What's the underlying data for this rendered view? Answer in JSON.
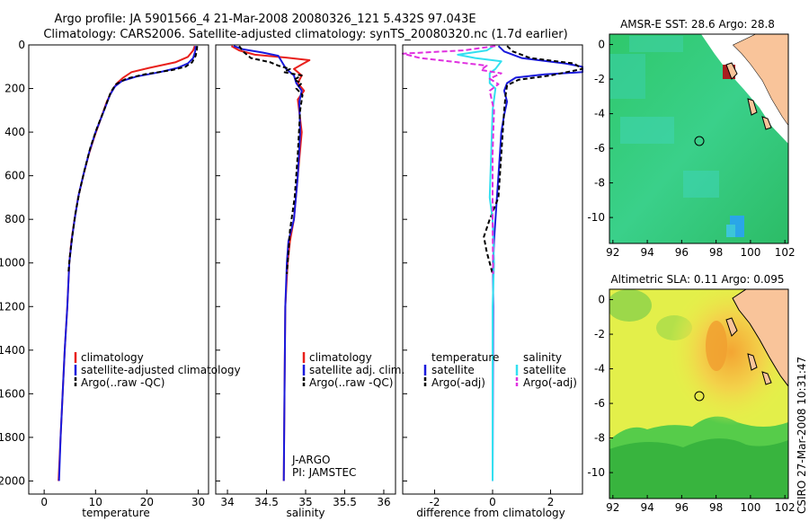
{
  "title": {
    "line1": "Argo profile: JA 5901566_4 21-Mar-2008 20080326_121 5.432S 97.043E",
    "line2": "Climatology: CARS2006. Satellite-adjusted climatology: synTS_20080320.nc (1.7d earlier)"
  },
  "side_label": "CSIRO 27-Mar-2008 10:31:47",
  "colors": {
    "climatology": "#e8201c",
    "satellite": "#1a1adc",
    "argo": "#000000",
    "cyan": "#33e0f0",
    "magenta": "#e030e0",
    "land": "#f9c49a"
  },
  "chart_data": [
    {
      "type": "line",
      "name": "temperature-panel",
      "xlabel": "temperature",
      "ylabel": "",
      "xlim": [
        -3,
        32
      ],
      "ylim": [
        2060,
        0
      ],
      "xticks": [
        0,
        10,
        20,
        30
      ],
      "yticks": [
        0,
        200,
        400,
        600,
        800,
        1000,
        1200,
        1400,
        1600,
        1800,
        2000
      ],
      "legend": [
        "climatology",
        "satellite-adjusted climatology",
        "Argo(..raw -QC)"
      ],
      "series": [
        {
          "name": "climatology",
          "color": "climatology",
          "dash": "",
          "points": [
            [
              29.3,
              5
            ],
            [
              29.0,
              25
            ],
            [
              28.0,
              55
            ],
            [
              25.5,
              80
            ],
            [
              20.5,
              105
            ],
            [
              17.0,
              125
            ],
            [
              15.4,
              150
            ],
            [
              14.2,
              175
            ],
            [
              13.2,
              210
            ],
            [
              12.2,
              260
            ],
            [
              11.0,
              340
            ],
            [
              9.8,
              420
            ],
            [
              8.7,
              500
            ],
            [
              7.6,
              600
            ],
            [
              6.6,
              700
            ],
            [
              5.9,
              800
            ],
            [
              5.3,
              900
            ],
            [
              4.9,
              1000
            ],
            [
              4.5,
              1200
            ],
            [
              4.0,
              1400
            ],
            [
              3.6,
              1600
            ],
            [
              3.2,
              1800
            ],
            [
              2.8,
              2000
            ]
          ]
        },
        {
          "name": "satellite",
          "color": "satellite",
          "dash": "",
          "points": [
            [
              29.5,
              5
            ],
            [
              29.4,
              30
            ],
            [
              29.0,
              60
            ],
            [
              28.0,
              85
            ],
            [
              26.0,
              105
            ],
            [
              22.5,
              125
            ],
            [
              18.0,
              145
            ],
            [
              15.2,
              165
            ],
            [
              13.8,
              190
            ],
            [
              12.8,
              230
            ],
            [
              11.5,
              310
            ],
            [
              10.0,
              400
            ],
            [
              8.8,
              490
            ],
            [
              7.7,
              590
            ],
            [
              6.7,
              690
            ],
            [
              6.0,
              790
            ],
            [
              5.4,
              890
            ],
            [
              4.9,
              1000
            ],
            [
              4.5,
              1200
            ],
            [
              4.0,
              1400
            ],
            [
              3.6,
              1600
            ],
            [
              3.2,
              1800
            ],
            [
              2.9,
              2000
            ]
          ]
        },
        {
          "name": "argo",
          "color": "argo",
          "dash": "5,3",
          "points": [
            [
              29.8,
              5
            ],
            [
              29.7,
              25
            ],
            [
              29.5,
              50
            ],
            [
              28.8,
              80
            ],
            [
              27.5,
              100
            ],
            [
              25.0,
              115
            ],
            [
              19.5,
              135
            ],
            [
              16.0,
              155
            ],
            [
              14.0,
              180
            ],
            [
              13.0,
              215
            ],
            [
              11.8,
              290
            ],
            [
              10.3,
              380
            ],
            [
              9.0,
              470
            ],
            [
              7.9,
              570
            ],
            [
              6.9,
              670
            ],
            [
              6.1,
              770
            ],
            [
              5.5,
              870
            ],
            [
              5.0,
              970
            ],
            [
              4.7,
              1050
            ]
          ]
        }
      ]
    },
    {
      "type": "line",
      "name": "salinity-panel",
      "xlabel": "salinity",
      "ylabel": "",
      "xlim": [
        33.85,
        36.15
      ],
      "ylim": [
        2060,
        0
      ],
      "xticks": [
        34,
        34.5,
        35,
        35.5,
        36
      ],
      "yticks": [
        0,
        200,
        400,
        600,
        800,
        1000,
        1200,
        1400,
        1600,
        1800,
        2000
      ],
      "legend": [
        "climatology",
        "satellite adj. clim.",
        "Argo(..raw -QC)"
      ],
      "annotations": [
        "J-ARGO",
        "PI: JAMSTEC"
      ],
      "series": [
        {
          "name": "climatology",
          "color": "climatology",
          "dash": "",
          "points": [
            [
              34.05,
              5
            ],
            [
              34.15,
              25
            ],
            [
              34.35,
              45
            ],
            [
              34.75,
              58
            ],
            [
              35.05,
              70
            ],
            [
              34.95,
              90
            ],
            [
              34.85,
              110
            ],
            [
              34.95,
              140
            ],
            [
              34.9,
              175
            ],
            [
              34.98,
              210
            ],
            [
              34.9,
              250
            ],
            [
              34.95,
              400
            ],
            [
              34.9,
              600
            ],
            [
              34.85,
              800
            ],
            [
              34.8,
              900
            ],
            [
              34.77,
              1000
            ],
            [
              34.74,
              1200
            ],
            [
              34.73,
              1600
            ],
            [
              34.72,
              2000
            ]
          ]
        },
        {
          "name": "satellite",
          "color": "satellite",
          "dash": "",
          "points": [
            [
              34.08,
              5
            ],
            [
              34.2,
              20
            ],
            [
              34.45,
              35
            ],
            [
              34.65,
              50
            ],
            [
              34.7,
              80
            ],
            [
              34.75,
              110
            ],
            [
              34.85,
              140
            ],
            [
              34.88,
              175
            ],
            [
              34.95,
              210
            ],
            [
              34.92,
              260
            ],
            [
              34.93,
              400
            ],
            [
              34.9,
              600
            ],
            [
              34.85,
              800
            ],
            [
              34.78,
              900
            ],
            [
              34.76,
              1000
            ],
            [
              34.74,
              1200
            ],
            [
              34.73,
              1600
            ],
            [
              34.72,
              2000
            ]
          ]
        },
        {
          "name": "argo",
          "color": "argo",
          "dash": "5,3",
          "points": [
            [
              34.15,
              5
            ],
            [
              34.2,
              30
            ],
            [
              34.3,
              60
            ],
            [
              34.55,
              80
            ],
            [
              34.65,
              95
            ],
            [
              34.8,
              110
            ],
            [
              34.72,
              125
            ],
            [
              34.95,
              140
            ],
            [
              34.85,
              160
            ],
            [
              34.95,
              175
            ],
            [
              34.88,
              200
            ],
            [
              34.96,
              230
            ],
            [
              34.93,
              300
            ],
            [
              34.9,
              500
            ],
            [
              34.86,
              700
            ],
            [
              34.8,
              850
            ],
            [
              34.78,
              950
            ],
            [
              34.76,
              1050
            ]
          ]
        }
      ]
    },
    {
      "type": "line",
      "name": "difference-panel",
      "xlabel": "difference from climatology",
      "ylabel": "",
      "xlim": [
        -3.1,
        3.1
      ],
      "ylim": [
        2060,
        0
      ],
      "xticks": [
        -2,
        0,
        2
      ],
      "yticks": [
        0,
        200,
        400,
        600,
        800,
        1000,
        1200,
        1400,
        1600,
        1800,
        2000
      ],
      "legend_temperature": {
        "heading": "temperature",
        "items": [
          "satellite",
          "Argo(-adj)"
        ]
      },
      "legend_salinity": {
        "heading": "salinity",
        "items": [
          "satellite",
          "Argo(-adj)"
        ]
      },
      "series": [
        {
          "name": "temperature-satellite",
          "color": "satellite",
          "dash": "",
          "points": [
            [
              0.2,
              5
            ],
            [
              0.4,
              30
            ],
            [
              1.0,
              60
            ],
            [
              2.5,
              85
            ],
            [
              3.1,
              100
            ],
            [
              3.1,
              125
            ],
            [
              1.8,
              135
            ],
            [
              0.8,
              150
            ],
            [
              0.5,
              175
            ],
            [
              0.4,
              210
            ],
            [
              0.5,
              260
            ],
            [
              0.4,
              320
            ],
            [
              0.3,
              400
            ],
            [
              0.25,
              500
            ],
            [
              0.2,
              600
            ],
            [
              0.15,
              700
            ],
            [
              0.1,
              800
            ],
            [
              0.05,
              900
            ],
            [
              0.02,
              1000
            ],
            [
              0.02,
              1200
            ],
            [
              0.01,
              1600
            ],
            [
              0.0,
              2000
            ]
          ]
        },
        {
          "name": "temperature-argo",
          "color": "argo",
          "dash": "5,3",
          "points": [
            [
              0.5,
              5
            ],
            [
              0.7,
              30
            ],
            [
              1.3,
              60
            ],
            [
              2.8,
              85
            ],
            [
              3.1,
              110
            ],
            [
              2.0,
              140
            ],
            [
              0.9,
              160
            ],
            [
              0.5,
              185
            ],
            [
              0.45,
              230
            ],
            [
              0.4,
              300
            ],
            [
              0.35,
              400
            ],
            [
              0.3,
              500
            ],
            [
              0.25,
              600
            ],
            [
              0.2,
              700
            ],
            [
              -0.1,
              800
            ],
            [
              -0.3,
              880
            ],
            [
              -0.2,
              950
            ],
            [
              -0.1,
              1000
            ],
            [
              0.0,
              1050
            ]
          ]
        },
        {
          "name": "salinity-satellite",
          "color": "cyan",
          "dash": "",
          "points": [
            [
              0.05,
              5
            ],
            [
              -0.2,
              25
            ],
            [
              -1.2,
              45
            ],
            [
              -0.6,
              60
            ],
            [
              0.3,
              75
            ],
            [
              0.1,
              110
            ],
            [
              -0.1,
              130
            ],
            [
              -0.1,
              175
            ],
            [
              0.1,
              200
            ],
            [
              0.0,
              300
            ],
            [
              -0.05,
              500
            ],
            [
              -0.1,
              700
            ],
            [
              0.0,
              800
            ],
            [
              0.05,
              1000
            ],
            [
              0.0,
              1200
            ],
            [
              0.0,
              1600
            ],
            [
              0.0,
              2000
            ]
          ]
        },
        {
          "name": "salinity-argo",
          "color": "magenta",
          "dash": "6,3",
          "points": [
            [
              0.1,
              5
            ],
            [
              -1.0,
              25
            ],
            [
              -3.1,
              40
            ],
            [
              -2.5,
              60
            ],
            [
              -1.5,
              75
            ],
            [
              -0.2,
              95
            ],
            [
              -0.4,
              115
            ],
            [
              0.3,
              130
            ],
            [
              -0.1,
              155
            ],
            [
              0.2,
              180
            ],
            [
              -0.1,
              210
            ],
            [
              0.05,
              300
            ],
            [
              0.0,
              500
            ],
            [
              0.0,
              800
            ],
            [
              0.02,
              1050
            ]
          ]
        }
      ]
    },
    {
      "type": "heatmap",
      "name": "sst-map",
      "title": "AMSR-E SST: 28.6  Argo: 28.8",
      "xlim": [
        91.8,
        102.2
      ],
      "ylim": [
        -11.5,
        0.6
      ],
      "xticks": [
        92,
        94,
        96,
        98,
        100,
        102
      ],
      "yticks": [
        0,
        -2,
        -4,
        -6,
        -8,
        -10
      ],
      "marker": [
        97.043,
        -5.432
      ]
    },
    {
      "type": "heatmap",
      "name": "sla-map",
      "title": "Altimetric SLA: 0.11  Argo: 0.095",
      "xlim": [
        91.8,
        102.2
      ],
      "ylim": [
        -11.5,
        0.6
      ],
      "xticks": [
        92,
        94,
        96,
        98,
        100,
        102
      ],
      "yticks": [
        0,
        -2,
        -4,
        -6,
        -8,
        -10
      ],
      "marker": [
        97.043,
        -5.432
      ]
    }
  ]
}
